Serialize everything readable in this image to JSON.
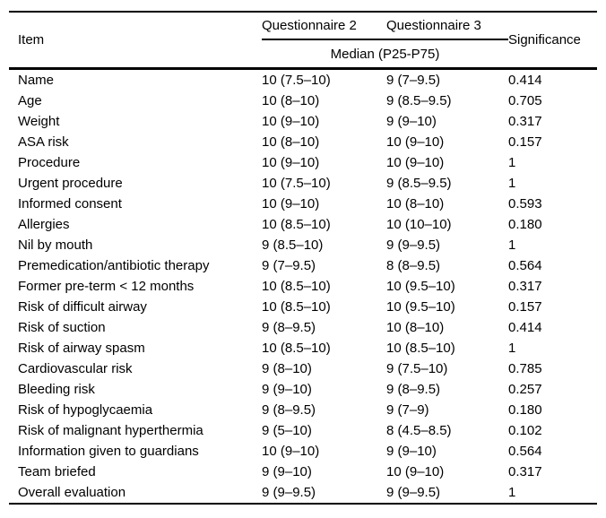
{
  "table": {
    "header": {
      "item": "Item",
      "q2": "Questionnaire 2",
      "q3": "Questionnaire 3",
      "significance": "Significance",
      "subheader": "Median (P25-P75)"
    },
    "rows": [
      {
        "item": "Name",
        "q2": "10 (7.5–10)",
        "q3": "9 (7–9.5)",
        "sig": "0.414"
      },
      {
        "item": "Age",
        "q2": "10 (8–10)",
        "q3": "9 (8.5–9.5)",
        "sig": "0.705"
      },
      {
        "item": "Weight",
        "q2": "10 (9–10)",
        "q3": "9 (9–10)",
        "sig": "0.317"
      },
      {
        "item": "ASA risk",
        "q2": "10 (8–10)",
        "q3": "10 (9–10)",
        "sig": "0.157"
      },
      {
        "item": "Procedure",
        "q2": "10 (9–10)",
        "q3": "10 (9–10)",
        "sig": "1"
      },
      {
        "item": "Urgent procedure",
        "q2": "10 (7.5–10)",
        "q3": "9 (8.5–9.5)",
        "sig": "1"
      },
      {
        "item": "Informed consent",
        "q2": "10 (9–10)",
        "q3": "10 (8–10)",
        "sig": "0.593"
      },
      {
        "item": "Allergies",
        "q2": "10 (8.5–10)",
        "q3": "10 (10–10)",
        "sig": "0.180"
      },
      {
        "item": "Nil by mouth",
        "q2": "9 (8.5–10)",
        "q3": "9 (9–9.5)",
        "sig": "1"
      },
      {
        "item": "Premedication/antibiotic therapy",
        "q2": "9 (7–9.5)",
        "q3": "8 (8–9.5)",
        "sig": "0.564"
      },
      {
        "item": "Former pre-term < 12 months",
        "q2": "10 (8.5–10)",
        "q3": "10 (9.5–10)",
        "sig": "0.317"
      },
      {
        "item": "Risk of difficult airway",
        "q2": "10 (8.5–10)",
        "q3": "10 (9.5–10)",
        "sig": "0.157"
      },
      {
        "item": "Risk of suction",
        "q2": "9 (8–9.5)",
        "q3": "10 (8–10)",
        "sig": "0.414"
      },
      {
        "item": "Risk of airway spasm",
        "q2": "10 (8.5–10)",
        "q3": "10 (8.5–10)",
        "sig": "1"
      },
      {
        "item": "Cardiovascular risk",
        "q2": "9 (8–10)",
        "q3": "9 (7.5–10)",
        "sig": "0.785"
      },
      {
        "item": "Bleeding risk",
        "q2": "9 (9–10)",
        "q3": "9 (8–9.5)",
        "sig": "0.257"
      },
      {
        "item": "Risk of hypoglycaemia",
        "q2": "9 (8–9.5)",
        "q3": "9 (7–9)",
        "sig": "0.180"
      },
      {
        "item": "Risk of malignant hyperthermia",
        "q2": "9 (5–10)",
        "q3": "8 (4.5–8.5)",
        "sig": "0.102"
      },
      {
        "item": "Information given to guardians",
        "q2": "10 (9–10)",
        "q3": "9 (9–10)",
        "sig": "0.564"
      },
      {
        "item": "Team briefed",
        "q2": "9 (9–10)",
        "q3": "10 (9–10)",
        "sig": "0.317"
      },
      {
        "item": "Overall evaluation",
        "q2": "9 (9–9.5)",
        "q3": "9 (9–9.5)",
        "sig": "1"
      }
    ]
  }
}
